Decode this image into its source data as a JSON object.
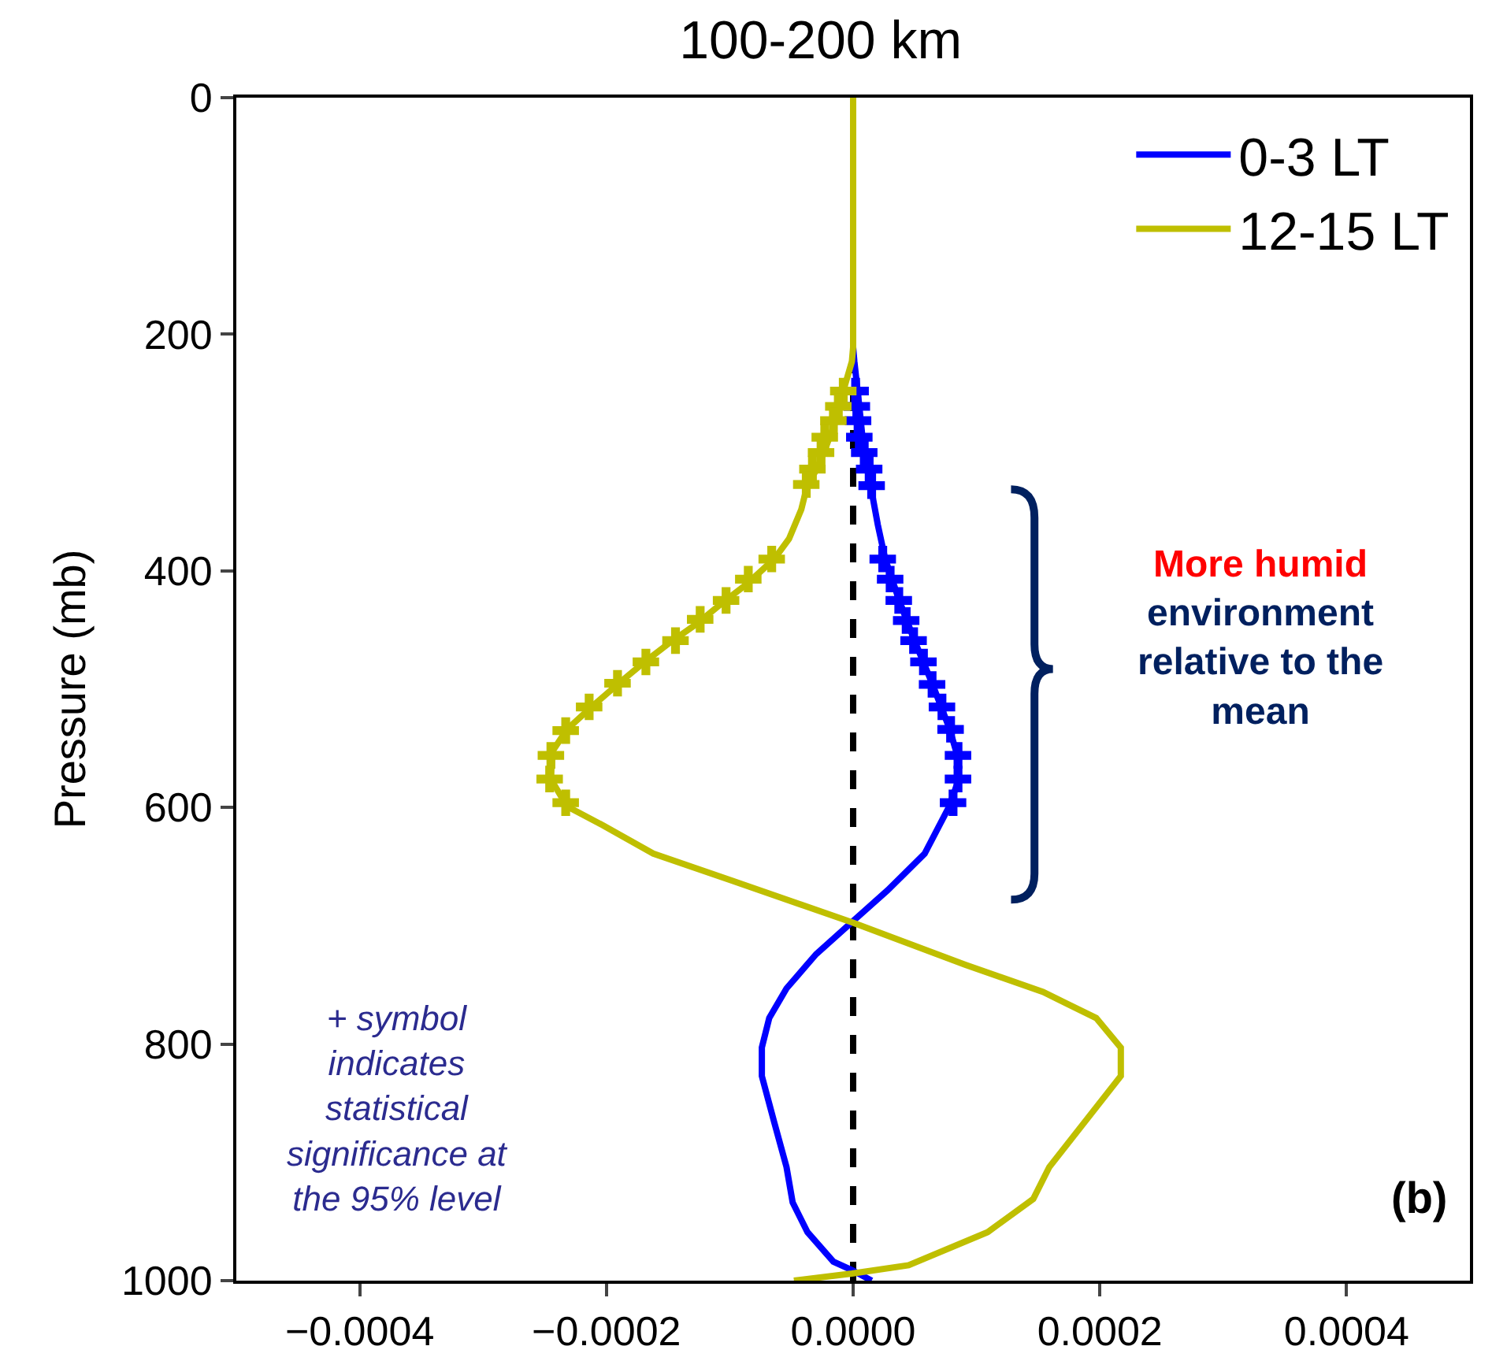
{
  "chart_data": {
    "type": "line",
    "title": "100-200 km",
    "ylabel": "Pressure (mb)",
    "xlim": [
      -0.0005,
      0.0005
    ],
    "xticks": [
      {
        "value": -0.0004,
        "label": "−0.0004"
      },
      {
        "value": -0.0002,
        "label": "−0.0002"
      },
      {
        "value": 0,
        "label": "0.0000"
      },
      {
        "value": 0.0002,
        "label": "0.0002"
      },
      {
        "value": 0.0004,
        "label": "0.0004"
      }
    ],
    "ylim": [
      1000,
      0
    ],
    "yticks": [
      0,
      200,
      400,
      600,
      800,
      1000
    ],
    "grid": false,
    "legend": "top right",
    "marker": "none",
    "line_style": "solid",
    "series": [
      {
        "name": "0-3 LT",
        "color": "#0000ff",
        "x": [
          0,
          0,
          1e-06,
          5e-06,
          9e-06,
          1.4e-05,
          2e-05,
          2.6e-05,
          3.7e-05,
          4.9e-05,
          6.4e-05,
          7.8e-05,
          8.5e-05,
          8.5e-05,
          7.8e-05,
          5.8e-05,
          2.8e-05,
          1e-06,
          -3e-05,
          -5.4e-05,
          -6.8e-05,
          -7.4e-05,
          -7.4e-05,
          -6.4e-05,
          -5.4e-05,
          -4.9e-05,
          -3.7e-05,
          -1.6e-05,
          -1e-06,
          1.5e-05
        ],
        "values": [
          0,
          211,
          223,
          261,
          302,
          327,
          361,
          390,
          424,
          457,
          495,
          533,
          558,
          578,
          599,
          639,
          670,
          695,
          724,
          753,
          778,
          803,
          827,
          866,
          904,
          934,
          959,
          984,
          991,
          1000
        ]
      },
      {
        "name": "12-15 LT",
        "color": "#bfbf00",
        "x": [
          0,
          0,
          -1e-06,
          -8e-06,
          -1.4e-05,
          -2.3e-05,
          -3e-05,
          -3.7e-05,
          -4.2e-05,
          -5.2e-05,
          -6.4e-05,
          -8.6e-05,
          -0.000106,
          -0.000127,
          -0.000149,
          -0.000169,
          -0.000191,
          -0.000212,
          -0.000232,
          -0.000244,
          -0.000245,
          -0.000232,
          -0.000203,
          -0.000162,
          -9.8e-05,
          -1e-06,
          9.1e-05,
          0.000154,
          0.000197,
          0.000217,
          0.000217,
          0.000159,
          0.000146,
          0.000109,
          4.5e-05,
          -1e-06,
          -4.8e-05
        ],
        "values": [
          0,
          211,
          223,
          248,
          273,
          298,
          315,
          327,
          348,
          373,
          390,
          411,
          427,
          445,
          461,
          477,
          496,
          515,
          534,
          553,
          576,
          599,
          615,
          639,
          662,
          697,
          733,
          756,
          778,
          803,
          827,
          904,
          931,
          959,
          987,
          994,
          1000
        ]
      },
      {
        "type": "scatter",
        "marker": "cross",
        "color": "#0000ff",
        "x": [
          2e-06,
          3e-06,
          4e-06,
          5e-06,
          9e-06,
          1.3e-05,
          1.5e-05,
          2.4e-05,
          3e-05,
          3.7e-05,
          4.3e-05,
          4.9e-05,
          5.7e-05,
          6.4e-05,
          7.2e-05,
          7.9e-05,
          8.5e-05,
          8.5e-05,
          8.1e-05
        ],
        "values": [
          248,
          261,
          273,
          287,
          300,
          314,
          328,
          390,
          407,
          425,
          442,
          459,
          477,
          496,
          515,
          534,
          556,
          576,
          596
        ]
      },
      {
        "type": "scatter",
        "marker": "cross",
        "color": "#bfbf00",
        "x": [
          -8e-06,
          -1.2e-05,
          -1.6e-05,
          -2.3e-05,
          -2.6e-05,
          -3.3e-05,
          -3.8e-05,
          -6.6e-05,
          -8.5e-05,
          -0.000103,
          -0.000124,
          -0.000144,
          -0.000168,
          -0.000191,
          -0.000214,
          -0.000233,
          -0.000245,
          -0.000246,
          -0.000233
        ],
        "values": [
          248,
          261,
          273,
          287,
          300,
          314,
          327,
          390,
          407,
          425,
          441,
          459,
          477,
          495,
          515,
          535,
          556,
          576,
          596
        ]
      }
    ],
    "ref_lines": [
      {
        "axis": "x",
        "value": 0,
        "color": "#000000",
        "line_style": "dashed"
      }
    ],
    "annotations": [
      "(b)",
      "+ symbol\nindicates\nstatistical\nsignificance at\nthe 95% level",
      "More humid",
      "environment\nrelative to the\nmean"
    ]
  }
}
